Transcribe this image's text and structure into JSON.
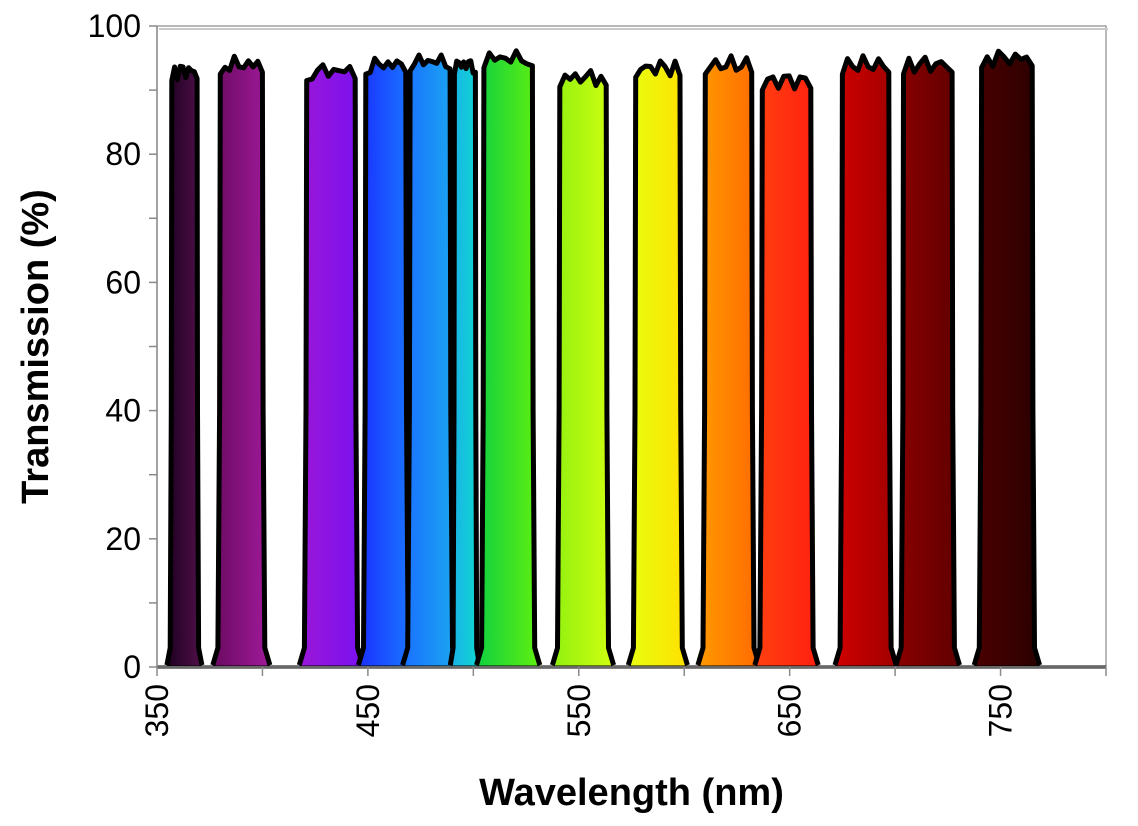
{
  "chart_data": {
    "type": "area",
    "title": "",
    "xlabel": "Wavelength (nm)",
    "ylabel": "Transmission (%)",
    "xlim": [
      350,
      800
    ],
    "ylim": [
      0,
      100
    ],
    "x_ticks": [
      350,
      400,
      450,
      500,
      550,
      600,
      650,
      700,
      750,
      800
    ],
    "x_tick_labels": [
      "350",
      "",
      "450",
      "",
      "550",
      "",
      "650",
      "",
      "750",
      ""
    ],
    "y_ticks": [
      0,
      10,
      20,
      30,
      40,
      50,
      60,
      70,
      80,
      90,
      100
    ],
    "y_tick_labels": [
      "0",
      "",
      "20",
      "",
      "40",
      "",
      "60",
      "",
      "80",
      "",
      "100"
    ],
    "grid": false,
    "legend": "none",
    "series": [
      {
        "low": 357,
        "high": 369,
        "peak": 93,
        "colors": [
          "#1e0020",
          "#50104a"
        ]
      },
      {
        "low": 380,
        "high": 400,
        "peak": 94,
        "colors": [
          "#6a0a60",
          "#a01a9a"
        ]
      },
      {
        "low": 421,
        "high": 444,
        "peak": 93,
        "colors": [
          "#9a18d8",
          "#7a10f0"
        ]
      },
      {
        "low": 449,
        "high": 468,
        "peak": 94,
        "colors": [
          "#1a30ff",
          "#1a78ff"
        ]
      },
      {
        "low": 470,
        "high": 489,
        "peak": 94.5,
        "colors": [
          "#1a70ff",
          "#1aa8f0"
        ]
      },
      {
        "low": 491,
        "high": 501,
        "peak": 94,
        "colors": [
          "#1ab0e8",
          "#10d8d0"
        ]
      },
      {
        "low": 505,
        "high": 528,
        "peak": 95,
        "colors": [
          "#10d040",
          "#60f010"
        ]
      },
      {
        "low": 541,
        "high": 563,
        "peak": 92,
        "colors": [
          "#90f010",
          "#d0ff10"
        ]
      },
      {
        "low": 577,
        "high": 598,
        "peak": 93.5,
        "colors": [
          "#e8ff10",
          "#ffe000"
        ]
      },
      {
        "low": 610,
        "high": 632,
        "peak": 94,
        "colors": [
          "#ff9a00",
          "#ff6a00"
        ]
      },
      {
        "low": 637,
        "high": 660,
        "peak": 91.5,
        "colors": [
          "#ff4010",
          "#ff2010"
        ]
      },
      {
        "low": 675,
        "high": 697,
        "peak": 94,
        "colors": [
          "#d00000",
          "#a00000"
        ]
      },
      {
        "low": 704,
        "high": 727,
        "peak": 94,
        "colors": [
          "#8a0000",
          "#600000"
        ]
      },
      {
        "low": 741,
        "high": 765,
        "peak": 95,
        "colors": [
          "#4a0000",
          "#2a0000"
        ]
      }
    ]
  }
}
